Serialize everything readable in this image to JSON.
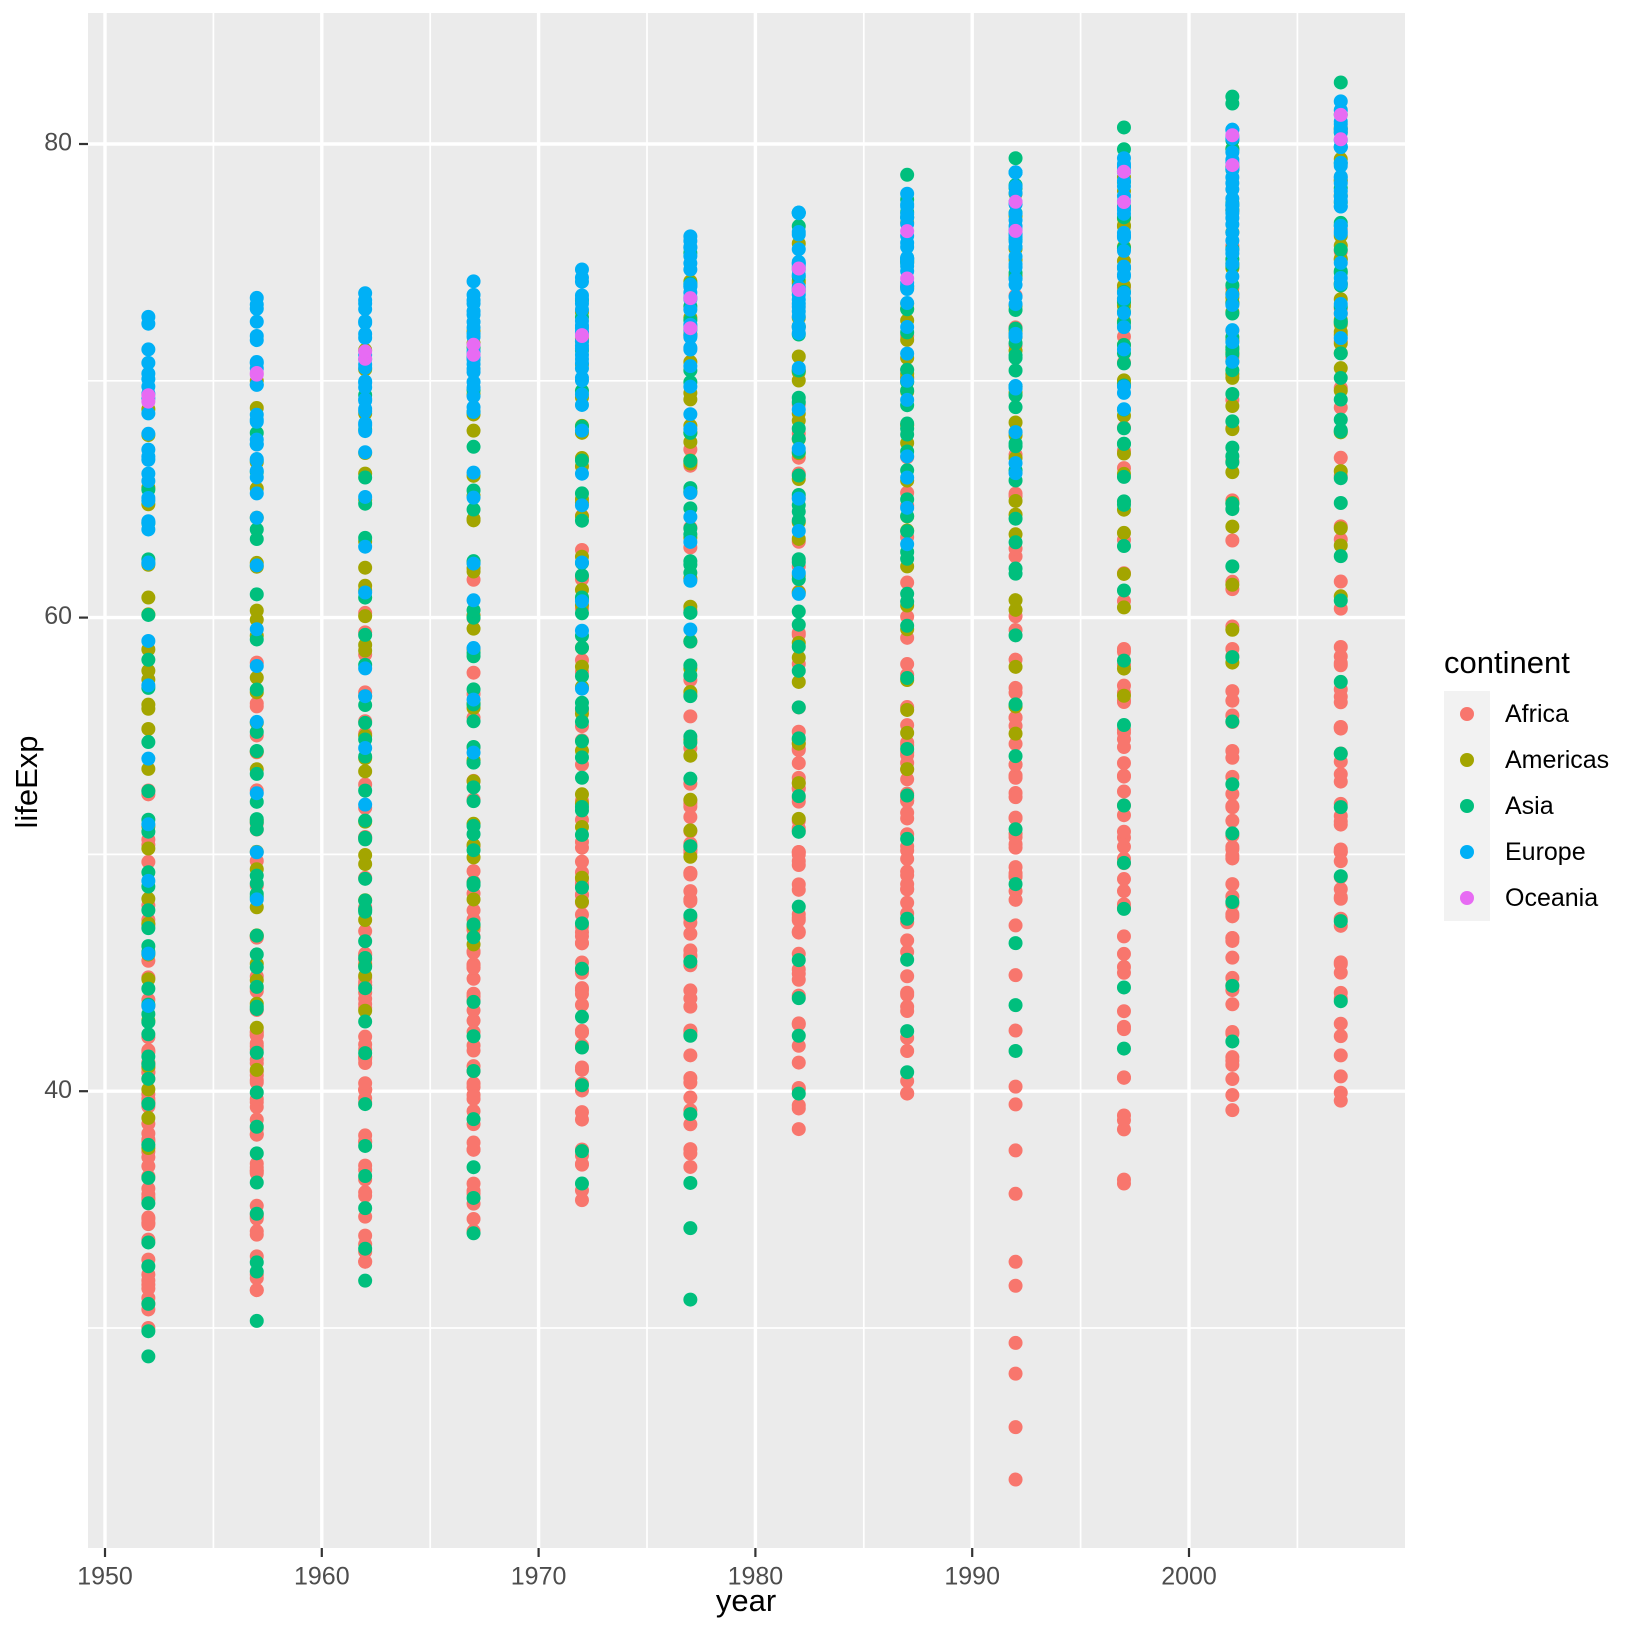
{
  "figure": {
    "background": "#FFFFFF",
    "panel_background": "#EBEBEB",
    "grid_color": "#FFFFFF",
    "tick_label_color": "#4D4D4D",
    "tick_mark_color": "#333333",
    "axis_title_color": "#000000"
  },
  "axes": {
    "x": {
      "title": "year",
      "major_ticks": [
        1950,
        1960,
        1970,
        1980,
        1990,
        2000
      ],
      "minor_ticks": [
        1955,
        1965,
        1975,
        1985,
        1995,
        2005
      ],
      "range": [
        1949.25,
        2009.75
      ]
    },
    "y": {
      "title": "lifeExp",
      "major_ticks": [
        40,
        60,
        80
      ],
      "minor_ticks": [
        30,
        50,
        70
      ],
      "range": [
        20.7,
        85.5
      ]
    }
  },
  "legend": {
    "title": "continent",
    "key_background": "#F2F2F2",
    "items": [
      {
        "label": "Africa",
        "color": "#F8766D"
      },
      {
        "label": "Americas",
        "color": "#A3A500"
      },
      {
        "label": "Asia",
        "color": "#00BF7D"
      },
      {
        "label": "Europe",
        "color": "#00B0F6"
      },
      {
        "label": "Oceania",
        "color": "#E76BF3"
      }
    ]
  },
  "chart_data": {
    "type": "scatter",
    "title": "",
    "xlabel": "year",
    "ylabel": "lifeExp",
    "grid": true,
    "legend_position": "right",
    "xlim": [
      1949.25,
      2009.75
    ],
    "ylim": [
      20.7,
      85.5
    ],
    "x_years": [
      1952,
      1957,
      1962,
      1967,
      1972,
      1977,
      1982,
      1987,
      1992,
      1997,
      2002,
      2007
    ],
    "series": [
      {
        "name": "Africa",
        "color": "#F8766D",
        "count": 52,
        "quantiles_by_year": [
          [
            30.0,
            35.0,
            38.8,
            42.1,
            52.7
          ],
          [
            31.6,
            36.7,
            40.6,
            44.1,
            58.1
          ],
          [
            32.8,
            38.5,
            42.6,
            46.0,
            60.2
          ],
          [
            34.1,
            40.3,
            44.7,
            48.0,
            61.6
          ],
          [
            35.4,
            42.3,
            47.0,
            50.1,
            64.3
          ],
          [
            36.8,
            44.1,
            49.3,
            52.4,
            67.1
          ],
          [
            38.4,
            45.8,
            50.8,
            54.5,
            69.0
          ],
          [
            39.9,
            47.5,
            51.6,
            56.0,
            71.9
          ],
          [
            23.6,
            47.8,
            52.4,
            57.2,
            73.6
          ],
          [
            36.1,
            46.9,
            52.8,
            58.1,
            74.8
          ],
          [
            39.2,
            45.8,
            51.2,
            58.5,
            75.7
          ],
          [
            39.6,
            47.8,
            52.9,
            59.4,
            76.4
          ]
        ]
      },
      {
        "name": "Americas",
        "color": "#A3A500",
        "count": 25,
        "quantiles_by_year": [
          [
            37.6,
            45.5,
            54.7,
            59.5,
            68.8
          ],
          [
            40.9,
            48.0,
            56.1,
            61.5,
            70.0
          ],
          [
            43.4,
            50.5,
            58.3,
            63.5,
            71.3
          ],
          [
            46.2,
            53.0,
            60.5,
            65.5,
            72.1
          ],
          [
            48.0,
            55.5,
            63.0,
            67.5,
            72.9
          ],
          [
            49.9,
            57.5,
            66.4,
            69.0,
            74.2
          ],
          [
            51.5,
            59.5,
            67.0,
            70.5,
            75.8
          ],
          [
            53.6,
            62.0,
            69.5,
            72.0,
            76.9
          ],
          [
            55.1,
            64.5,
            69.9,
            73.0,
            77.9
          ],
          [
            56.7,
            66.5,
            72.1,
            74.5,
            78.6
          ],
          [
            58.1,
            68.5,
            72.0,
            75.5,
            79.8
          ],
          [
            60.9,
            70.5,
            72.9,
            76.5,
            80.7
          ]
        ]
      },
      {
        "name": "Asia",
        "color": "#00BF7D",
        "count": 33,
        "quantiles_by_year": [
          [
            28.8,
            39.5,
            44.9,
            51.5,
            65.4
          ],
          [
            30.3,
            42.0,
            48.3,
            54.0,
            67.8
          ],
          [
            32.0,
            44.5,
            49.3,
            56.5,
            69.4
          ],
          [
            34.0,
            47.5,
            53.7,
            59.5,
            71.4
          ],
          [
            36.1,
            50.5,
            56.9,
            63.0,
            73.4
          ],
          [
            31.2,
            53.5,
            60.8,
            66.0,
            75.4
          ],
          [
            39.9,
            56.5,
            63.7,
            68.5,
            77.1
          ],
          [
            40.8,
            59.5,
            66.3,
            70.5,
            78.7
          ],
          [
            41.7,
            61.5,
            68.7,
            72.0,
            79.4
          ],
          [
            41.8,
            63.5,
            70.3,
            73.5,
            80.7
          ],
          [
            42.1,
            64.5,
            71.0,
            75.0,
            82.0
          ],
          [
            43.8,
            65.5,
            72.4,
            76.0,
            82.6
          ]
        ]
      },
      {
        "name": "Europe",
        "color": "#00B0F6",
        "count": 30,
        "quantiles_by_year": [
          [
            43.6,
            62.5,
            65.9,
            69.0,
            72.7
          ],
          [
            48.1,
            65.0,
            67.7,
            70.5,
            73.5
          ],
          [
            52.1,
            67.5,
            69.5,
            71.5,
            73.7
          ],
          [
            54.3,
            69.0,
            70.6,
            72.0,
            74.2
          ],
          [
            57.0,
            70.0,
            70.8,
            73.0,
            74.7
          ],
          [
            59.5,
            70.8,
            72.3,
            74.2,
            76.1
          ],
          [
            61.0,
            72.0,
            73.5,
            75.0,
            77.1
          ],
          [
            63.1,
            73.0,
            74.8,
            76.0,
            77.9
          ],
          [
            66.1,
            73.7,
            75.5,
            77.0,
            78.8
          ],
          [
            68.8,
            74.5,
            76.1,
            77.8,
            79.4
          ],
          [
            70.8,
            75.5,
            77.5,
            79.0,
            80.6
          ],
          [
            71.8,
            76.5,
            78.6,
            80.0,
            81.8
          ]
        ]
      },
      {
        "name": "Oceania",
        "color": "#E76BF3",
        "count": 2,
        "values_by_year": [
          [
            69.12,
            69.39
          ],
          [
            70.26,
            70.33
          ],
          [
            70.93,
            71.24
          ],
          [
            71.1,
            71.52
          ],
          [
            71.89,
            71.93
          ],
          [
            72.22,
            73.49
          ],
          [
            73.84,
            74.74
          ],
          [
            74.32,
            76.32
          ],
          [
            76.33,
            77.56
          ],
          [
            77.55,
            78.83
          ],
          [
            79.11,
            80.37
          ],
          [
            80.2,
            81.23
          ]
        ]
      }
    ]
  }
}
